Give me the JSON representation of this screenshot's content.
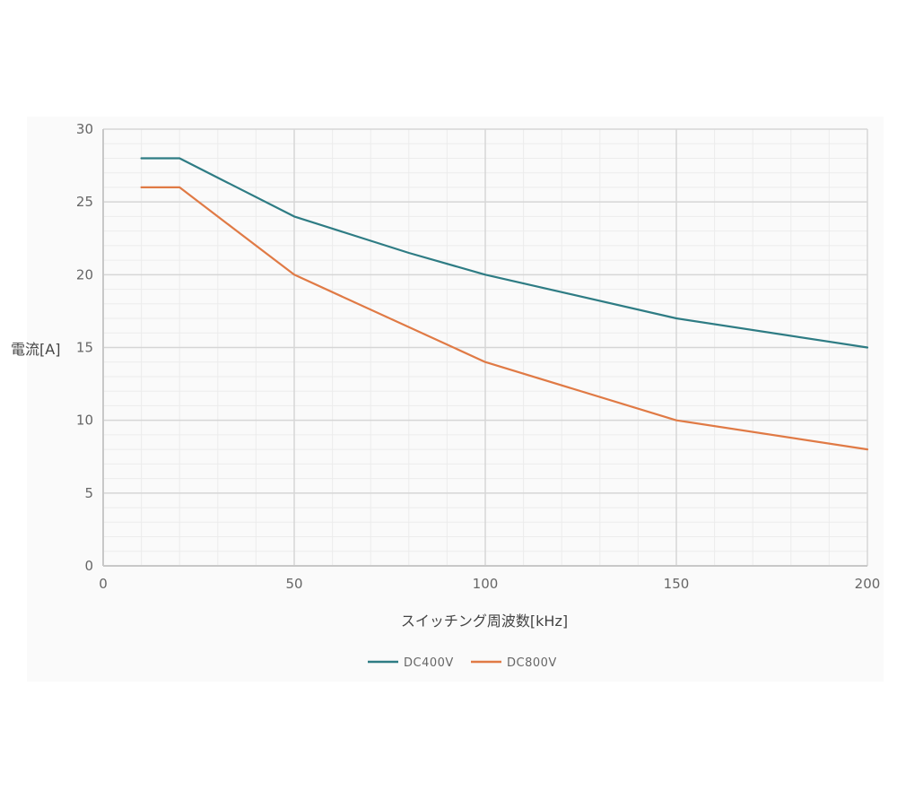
{
  "chart_data": {
    "type": "line",
    "xlabel": "スイッチング周波数[kHz]",
    "ylabel": "電流[A]",
    "xlim": [
      0,
      200
    ],
    "ylim": [
      0,
      30
    ],
    "x_ticks": [
      0,
      50,
      100,
      150,
      200
    ],
    "y_ticks": [
      0,
      5,
      10,
      15,
      20,
      25,
      30
    ],
    "grid": true,
    "legend_position": "bottom-center",
    "series": [
      {
        "name": "DC400V",
        "color": "#2e7c84",
        "points": [
          [
            10,
            28
          ],
          [
            20,
            28
          ],
          [
            50,
            24
          ],
          [
            80,
            21.5
          ],
          [
            100,
            20
          ],
          [
            150,
            17
          ],
          [
            200,
            15
          ]
        ]
      },
      {
        "name": "DC800V",
        "color": "#e07a45",
        "points": [
          [
            10,
            26
          ],
          [
            20,
            26
          ],
          [
            40,
            22
          ],
          [
            50,
            20
          ],
          [
            100,
            14
          ],
          [
            150,
            10
          ],
          [
            200,
            8
          ]
        ]
      }
    ]
  }
}
